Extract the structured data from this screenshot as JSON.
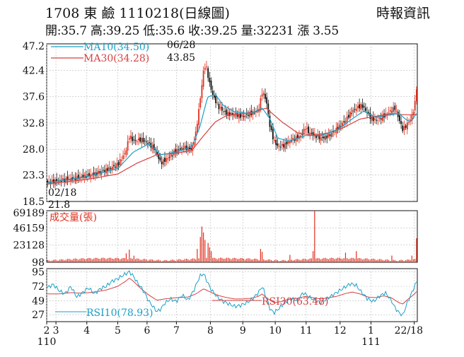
{
  "header": {
    "title": "1708 東 鹼 1110218(日線圖)",
    "source": "時報資訊",
    "stats": "開:35.7 高:39.25 低:35.6 收:39.25 量:32231 漲 3.55"
  },
  "colors": {
    "up": "#e0301e",
    "down": "#111111",
    "ma10": "#1aa0c8",
    "ma30": "#d84040",
    "volume": "#e0301e",
    "rsi30": "#d84040",
    "rsi10": "#1aa0c8",
    "grid": "#bbbbbb"
  },
  "chart_data": [
    {
      "type": "candlestick",
      "panel": "price",
      "ylim": [
        18.5,
        47.2
      ],
      "y_ticks": [
        "47.2",
        "42.4",
        "37.6",
        "32.8",
        "28.0",
        "23.3",
        "18.5"
      ],
      "legend": [
        "MA10(34.50)",
        "MA30(34.28)"
      ],
      "annotations": [
        {
          "label": "06/28",
          "value": "43.85"
        },
        {
          "label": "02/18",
          "value": "21.8"
        }
      ],
      "close_path": [
        [
          0,
          22.0
        ],
        [
          6,
          22.3
        ],
        [
          12,
          22.6
        ],
        [
          18,
          23.0
        ],
        [
          24,
          23.5
        ],
        [
          30,
          24.2
        ],
        [
          36,
          25.2
        ],
        [
          40,
          27.5
        ],
        [
          42,
          30.5
        ],
        [
          44,
          29.5
        ],
        [
          48,
          29.8
        ],
        [
          52,
          29.0
        ],
        [
          55,
          28.0
        ],
        [
          58,
          25.5
        ],
        [
          62,
          26.5
        ],
        [
          66,
          27.8
        ],
        [
          70,
          28.3
        ],
        [
          74,
          28.0
        ],
        [
          76,
          31.0
        ],
        [
          78,
          36.5
        ],
        [
          80,
          42.5
        ],
        [
          81,
          43.5
        ],
        [
          83,
          40.0
        ],
        [
          85,
          37.5
        ],
        [
          88,
          35.5
        ],
        [
          92,
          34.5
        ],
        [
          96,
          34.3
        ],
        [
          100,
          34.0
        ],
        [
          104,
          34.5
        ],
        [
          108,
          35.0
        ],
        [
          110,
          38.5
        ],
        [
          112,
          37.0
        ],
        [
          114,
          32.0
        ],
        [
          116,
          29.5
        ],
        [
          118,
          28.5
        ],
        [
          121,
          28.7
        ],
        [
          124,
          29.5
        ],
        [
          127,
          30.0
        ],
        [
          130,
          30.5
        ],
        [
          132,
          32.0
        ],
        [
          134,
          31.0
        ],
        [
          137,
          30.5
        ],
        [
          140,
          30.0
        ],
        [
          143,
          30.3
        ],
        [
          146,
          31.0
        ],
        [
          149,
          32.0
        ],
        [
          152,
          33.0
        ],
        [
          155,
          34.5
        ],
        [
          158,
          35.5
        ],
        [
          161,
          36.0
        ],
        [
          164,
          34.5
        ],
        [
          166,
          33.5
        ],
        [
          169,
          33.3
        ],
        [
          172,
          34.0
        ],
        [
          175,
          34.8
        ],
        [
          178,
          35.5
        ],
        [
          180,
          33.5
        ],
        [
          182,
          31.5
        ],
        [
          184,
          32.5
        ],
        [
          186,
          33.5
        ],
        [
          188,
          35.7
        ],
        [
          189,
          39.25
        ]
      ],
      "ma10_path": [
        [
          0,
          21.9
        ],
        [
          20,
          23.0
        ],
        [
          36,
          24.5
        ],
        [
          44,
          27.5
        ],
        [
          52,
          29.0
        ],
        [
          58,
          27.0
        ],
        [
          66,
          27.5
        ],
        [
          74,
          28.5
        ],
        [
          78,
          32.0
        ],
        [
          82,
          37.5
        ],
        [
          86,
          38.0
        ],
        [
          90,
          36.0
        ],
        [
          96,
          34.8
        ],
        [
          104,
          34.5
        ],
        [
          110,
          35.5
        ],
        [
          114,
          33.5
        ],
        [
          118,
          30.0
        ],
        [
          124,
          29.5
        ],
        [
          132,
          30.5
        ],
        [
          140,
          30.5
        ],
        [
          148,
          31.5
        ],
        [
          156,
          33.5
        ],
        [
          162,
          35.0
        ],
        [
          168,
          33.8
        ],
        [
          174,
          34.2
        ],
        [
          180,
          34.5
        ],
        [
          184,
          33.3
        ],
        [
          186,
          33.0
        ],
        [
          189,
          34.5
        ]
      ],
      "ma30_path": [
        [
          0,
          21.7
        ],
        [
          20,
          22.5
        ],
        [
          36,
          23.5
        ],
        [
          46,
          25.5
        ],
        [
          56,
          27.0
        ],
        [
          66,
          27.3
        ],
        [
          74,
          27.8
        ],
        [
          80,
          30.5
        ],
        [
          86,
          33.0
        ],
        [
          92,
          34.2
        ],
        [
          100,
          34.5
        ],
        [
          106,
          34.8
        ],
        [
          112,
          35.5
        ],
        [
          120,
          33.0
        ],
        [
          128,
          31.0
        ],
        [
          136,
          30.5
        ],
        [
          144,
          31.0
        ],
        [
          152,
          32.0
        ],
        [
          160,
          33.5
        ],
        [
          168,
          34.0
        ],
        [
          176,
          34.5
        ],
        [
          182,
          34.3
        ],
        [
          189,
          34.28
        ]
      ]
    },
    {
      "type": "bar",
      "panel": "volume",
      "ylim": [
        98,
        69189
      ],
      "y_ticks": [
        "69189",
        "46159",
        "23128",
        "98"
      ],
      "legend": [
        "成交量(張)"
      ],
      "spikes": [
        [
          40,
          12000
        ],
        [
          42,
          17000
        ],
        [
          44,
          9000
        ],
        [
          77,
          18000
        ],
        [
          78,
          34000
        ],
        [
          79,
          48000
        ],
        [
          80,
          40000
        ],
        [
          81,
          30000
        ],
        [
          82,
          26000
        ],
        [
          83,
          20000
        ],
        [
          84,
          15000
        ],
        [
          109,
          18000
        ],
        [
          110,
          14000
        ],
        [
          124,
          10000
        ],
        [
          136,
          15000
        ],
        [
          137,
          69189
        ],
        [
          153,
          13000
        ],
        [
          158,
          15000
        ],
        [
          176,
          9000
        ],
        [
          187,
          9000
        ],
        [
          189,
          32231
        ]
      ]
    },
    {
      "type": "line",
      "panel": "rsi",
      "ylim": [
        16,
        100
      ],
      "y_ticks": [
        "95",
        "72",
        "49",
        "27"
      ],
      "legend": [
        "RSI30(63.48)",
        "RSI10(78.93)"
      ],
      "rsi10_path": [
        [
          0,
          70
        ],
        [
          3,
          75
        ],
        [
          6,
          65
        ],
        [
          9,
          60
        ],
        [
          12,
          72
        ],
        [
          15,
          55
        ],
        [
          18,
          62
        ],
        [
          21,
          70
        ],
        [
          24,
          60
        ],
        [
          27,
          68
        ],
        [
          30,
          72
        ],
        [
          33,
          80
        ],
        [
          36,
          84
        ],
        [
          39,
          90
        ],
        [
          42,
          95
        ],
        [
          44,
          88
        ],
        [
          46,
          78
        ],
        [
          48,
          70
        ],
        [
          50,
          60
        ],
        [
          52,
          48
        ],
        [
          54,
          40
        ],
        [
          56,
          32
        ],
        [
          58,
          36
        ],
        [
          60,
          45
        ],
        [
          63,
          52
        ],
        [
          66,
          48
        ],
        [
          69,
          58
        ],
        [
          72,
          50
        ],
        [
          75,
          66
        ],
        [
          78,
          88
        ],
        [
          80,
          92
        ],
        [
          82,
          78
        ],
        [
          84,
          66
        ],
        [
          87,
          55
        ],
        [
          90,
          48
        ],
        [
          93,
          44
        ],
        [
          96,
          40
        ],
        [
          99,
          42
        ],
        [
          102,
          46
        ],
        [
          105,
          52
        ],
        [
          108,
          62
        ],
        [
          110,
          72
        ],
        [
          112,
          55
        ],
        [
          114,
          36
        ],
        [
          116,
          30
        ],
        [
          119,
          38
        ],
        [
          122,
          48
        ],
        [
          125,
          52
        ],
        [
          128,
          50
        ],
        [
          131,
          62
        ],
        [
          134,
          55
        ],
        [
          137,
          50
        ],
        [
          140,
          46
        ],
        [
          143,
          52
        ],
        [
          146,
          58
        ],
        [
          149,
          64
        ],
        [
          152,
          70
        ],
        [
          155,
          76
        ],
        [
          158,
          74
        ],
        [
          161,
          62
        ],
        [
          164,
          52
        ],
        [
          167,
          48
        ],
        [
          170,
          56
        ],
        [
          173,
          62
        ],
        [
          176,
          50
        ],
        [
          178,
          38
        ],
        [
          180,
          30
        ],
        [
          182,
          26
        ],
        [
          184,
          44
        ],
        [
          186,
          58
        ],
        [
          188,
          72
        ],
        [
          189,
          78.93
        ]
      ],
      "rsi30_path": [
        [
          0,
          60
        ],
        [
          6,
          60
        ],
        [
          12,
          62
        ],
        [
          18,
          61
        ],
        [
          24,
          63
        ],
        [
          30,
          66
        ],
        [
          36,
          72
        ],
        [
          40,
          80
        ],
        [
          42,
          85
        ],
        [
          44,
          80
        ],
        [
          48,
          68
        ],
        [
          52,
          58
        ],
        [
          56,
          50
        ],
        [
          60,
          52
        ],
        [
          66,
          54
        ],
        [
          72,
          55
        ],
        [
          76,
          60
        ],
        [
          80,
          68
        ],
        [
          84,
          62
        ],
        [
          88,
          57
        ],
        [
          92,
          54
        ],
        [
          96,
          52
        ],
        [
          100,
          52
        ],
        [
          104,
          53
        ],
        [
          108,
          56
        ],
        [
          110,
          60
        ],
        [
          112,
          54
        ],
        [
          116,
          46
        ],
        [
          120,
          48
        ],
        [
          124,
          52
        ],
        [
          128,
          53
        ],
        [
          132,
          56
        ],
        [
          136,
          54
        ],
        [
          140,
          52
        ],
        [
          144,
          54
        ],
        [
          148,
          56
        ],
        [
          152,
          60
        ],
        [
          156,
          63
        ],
        [
          160,
          60
        ],
        [
          164,
          55
        ],
        [
          168,
          54
        ],
        [
          172,
          57
        ],
        [
          176,
          54
        ],
        [
          180,
          46
        ],
        [
          182,
          44
        ],
        [
          184,
          50
        ],
        [
          186,
          55
        ],
        [
          188,
          60
        ],
        [
          189,
          63.48
        ]
      ]
    }
  ],
  "x_axis": {
    "ticks": [
      {
        "label": "2",
        "i": 0
      },
      {
        "label": "3",
        "i": 6
      },
      {
        "label": "4",
        "i": 26
      },
      {
        "label": "5",
        "i": 46
      },
      {
        "label": "6",
        "i": 65
      },
      {
        "label": "7",
        "i": 84
      },
      {
        "label": "8",
        "i": 106
      },
      {
        "label": "9",
        "i": 127
      },
      {
        "label": "10",
        "i": 148
      },
      {
        "label": "11",
        "i": 168
      },
      {
        "label": "12",
        "i": 190
      },
      {
        "label": "1",
        "i": 210
      },
      {
        "label": "22/18",
        "i": 238
      }
    ],
    "year_labels": [
      {
        "label": "110",
        "i": 0
      },
      {
        "label": "111",
        "i": 210
      }
    ]
  }
}
